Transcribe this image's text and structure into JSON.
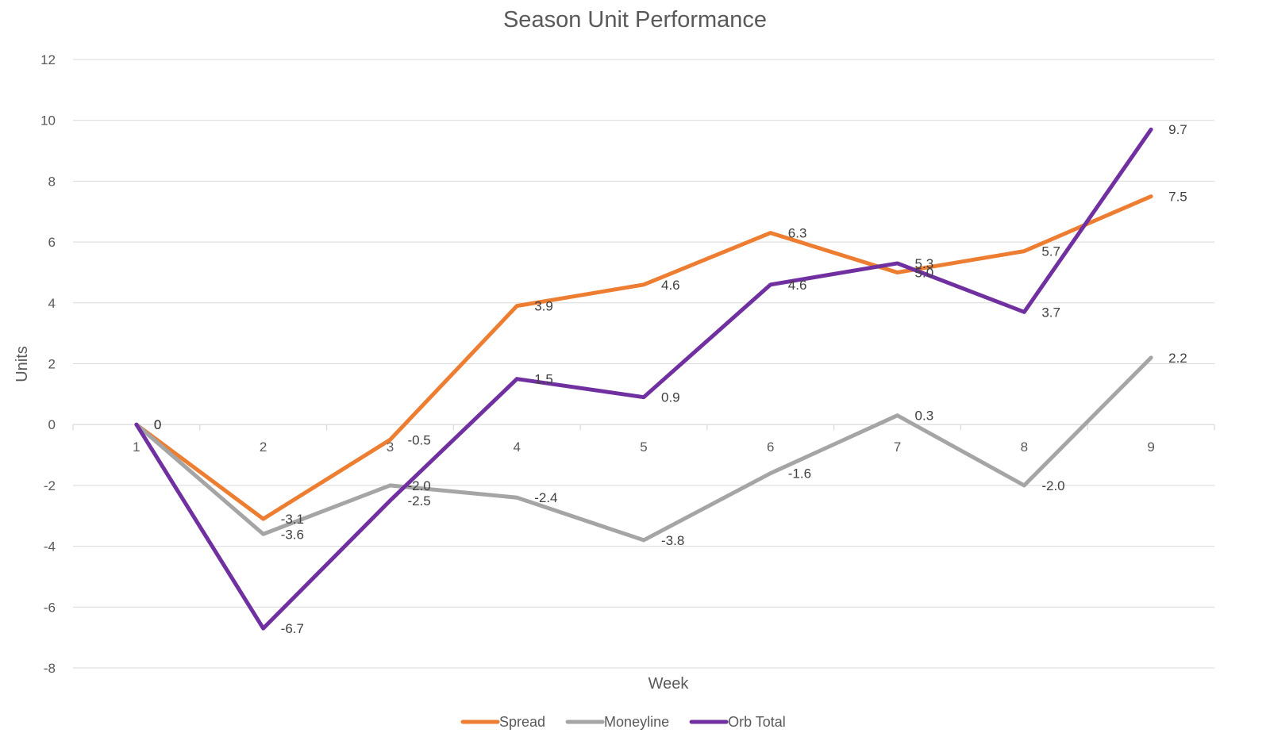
{
  "chart_data": {
    "type": "line",
    "title": "Season Unit Performance",
    "xlabel": "Week",
    "ylabel": "Units",
    "categories": [
      "1",
      "2",
      "3",
      "4",
      "5",
      "6",
      "7",
      "8",
      "9"
    ],
    "ylim": [
      -8,
      12
    ],
    "yticks": [
      "12",
      "10",
      "8",
      "6",
      "4",
      "2",
      "0",
      "-2",
      "-4",
      "-6",
      "-8"
    ],
    "ytick_values": [
      12,
      10,
      8,
      6,
      4,
      2,
      0,
      -2,
      -4,
      -6,
      -8
    ],
    "grid": true,
    "legend_position": "bottom",
    "series": [
      {
        "name": "Spread",
        "color": "#ed7d31",
        "values": [
          0,
          -3.1,
          -0.5,
          3.9,
          4.6,
          6.3,
          5.0,
          5.7,
          7.5
        ],
        "labels": [
          "0",
          "-3.1",
          "-0.5",
          "3.9",
          "4.6",
          "6.3",
          "5.0",
          "5.7",
          "7.5"
        ]
      },
      {
        "name": "Moneyline",
        "color": "#a5a5a5",
        "values": [
          0,
          -3.6,
          -2.0,
          -2.4,
          -3.8,
          -1.6,
          0.3,
          -2.0,
          2.2
        ],
        "labels": [
          "0",
          "-3.6",
          "-2.0",
          "-2.4",
          "-3.8",
          "-1.6",
          "0.3",
          "-2.0",
          "2.2"
        ]
      },
      {
        "name": "Orb Total",
        "color": "#7030a0",
        "values": [
          0,
          -6.7,
          -2.5,
          1.5,
          0.9,
          4.6,
          5.3,
          3.7,
          9.7
        ],
        "labels": [
          "0",
          "-6.7",
          "-2.5",
          "1.5",
          "0.9",
          "4.6",
          "5.3",
          "3.7",
          "9.7"
        ]
      }
    ]
  }
}
